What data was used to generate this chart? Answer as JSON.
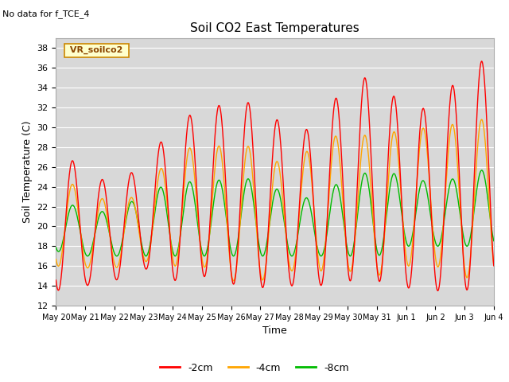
{
  "title": "Soil CO2 East Temperatures",
  "no_data_text": "No data for f_TCE_4",
  "xlabel": "Time",
  "ylabel": "Soil Temperature (C)",
  "ylim": [
    12,
    39
  ],
  "yticks": [
    12,
    14,
    16,
    18,
    20,
    22,
    24,
    26,
    28,
    30,
    32,
    34,
    36,
    38
  ],
  "color_2cm": "#ff0000",
  "color_4cm": "#ffa500",
  "color_8cm": "#00bb00",
  "legend_label_2cm": "-2cm",
  "legend_label_4cm": "-4cm",
  "legend_label_8cm": "-8cm",
  "legend_box_label": "VR_soilco2",
  "bg_color": "#d8d8d8",
  "n_days": 15,
  "amplitude_trend_2cm": [
    13.5,
    29.5,
    14.0,
    24.5,
    14.5,
    24.9,
    15.8,
    25.8,
    14.5,
    30.4,
    15.0,
    31.8,
    14.2,
    32.5,
    13.8,
    32.5,
    14.0,
    29.5,
    14.0,
    30.0,
    14.5,
    35.0,
    14.5,
    35.0,
    13.8,
    31.8,
    13.5,
    32.0,
    13.5,
    35.8,
    14.5,
    37.3
  ],
  "amplitude_trend_4cm": [
    16.0,
    26.2,
    15.8,
    22.8,
    15.8,
    22.8,
    16.5,
    23.0,
    16.0,
    27.8,
    16.0,
    28.0,
    14.5,
    28.2,
    14.5,
    28.0,
    15.5,
    25.5,
    15.5,
    29.0,
    15.5,
    29.2,
    15.0,
    29.2,
    16.0,
    29.8,
    16.0,
    30.0,
    14.8,
    30.5,
    15.0,
    31.0
  ],
  "amplitude_trend_8cm": [
    17.5,
    23.0,
    17.0,
    21.5,
    17.0,
    21.5,
    17.0,
    23.2,
    17.0,
    24.5,
    17.0,
    24.5,
    17.0,
    24.8,
    17.0,
    24.8,
    17.0,
    23.0,
    17.0,
    22.8,
    17.0,
    25.2,
    17.0,
    25.5,
    18.0,
    25.2,
    18.0,
    24.2,
    18.0,
    25.2,
    18.0,
    26.0
  ]
}
